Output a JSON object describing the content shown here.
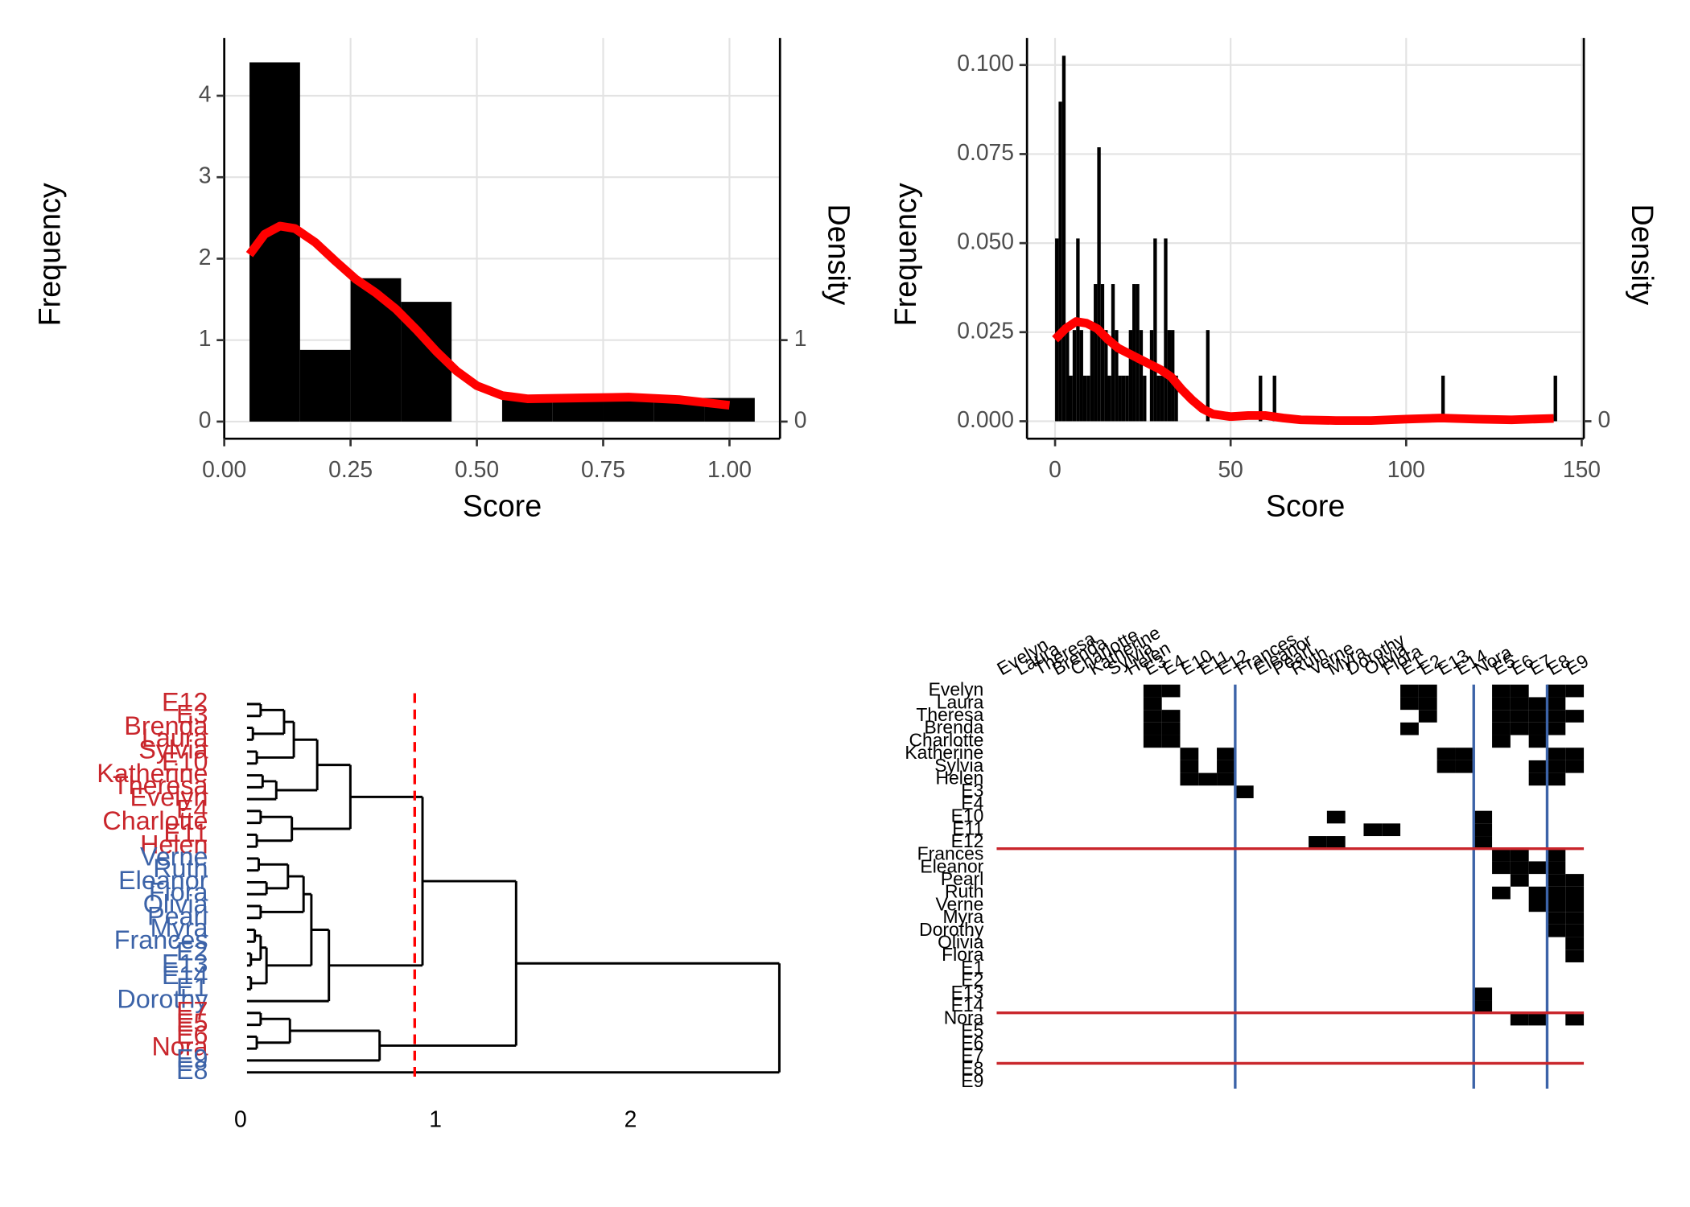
{
  "chart_data": [
    {
      "type": "histogram",
      "xlabel": "Score",
      "ylabel": "Frequency",
      "y2label": "Density",
      "grid": true,
      "color": "#000000",
      "bins": [
        0.05,
        0.15,
        0.25,
        0.35,
        0.45,
        0.55,
        0.65,
        0.75,
        0.85,
        0.95,
        1.05
      ],
      "values": [
        4.41,
        0.88,
        1.76,
        1.47,
        0,
        0.29,
        0.29,
        0.29,
        0.29,
        0.29
      ],
      "xlim": [
        0,
        1.1
      ],
      "xticks": [
        {
          "value": 0,
          "label": "0.00"
        },
        {
          "value": 0.25,
          "label": "0.25"
        },
        {
          "value": 0.5,
          "label": "0.50"
        },
        {
          "value": 0.75,
          "label": "0.75"
        },
        {
          "value": 1,
          "label": "1.00"
        }
      ],
      "ylim": [
        -0.21,
        4.71
      ],
      "yticks": [
        0,
        1,
        2,
        3,
        4
      ],
      "y2lim": [
        -0.21,
        4.71
      ],
      "y2ticks": [
        0,
        1
      ],
      "density": {
        "axis": "y2",
        "color": "#ff0000",
        "x": [
          0.05,
          0.08,
          0.11,
          0.14,
          0.18,
          0.22,
          0.26,
          0.3,
          0.34,
          0.38,
          0.42,
          0.46,
          0.5,
          0.55,
          0.6,
          0.7,
          0.8,
          0.9,
          1.0
        ],
        "y": [
          2.05,
          2.3,
          2.4,
          2.37,
          2.2,
          1.97,
          1.75,
          1.58,
          1.38,
          1.13,
          0.86,
          0.62,
          0.44,
          0.32,
          0.28,
          0.29,
          0.3,
          0.27,
          0.2
        ]
      }
    },
    {
      "type": "histogram",
      "xlabel": "Score",
      "ylabel": "Frequency",
      "y2label": "Density",
      "grid": true,
      "color": "#000000",
      "bins": [
        0,
        1,
        2,
        3,
        4,
        5,
        6,
        7,
        8,
        9,
        10,
        11,
        12,
        13,
        14,
        15,
        16,
        17,
        18,
        19,
        20,
        21,
        22,
        23,
        24,
        25,
        26,
        27,
        28,
        29,
        30,
        31,
        32,
        33,
        34,
        35,
        36,
        37,
        38,
        39,
        40,
        41,
        42,
        43,
        44,
        45,
        46,
        47,
        48,
        49,
        50,
        51,
        52,
        53,
        54,
        55,
        56,
        57,
        58,
        59,
        60,
        61,
        62,
        63,
        64,
        65,
        66,
        67,
        68,
        69,
        70,
        71,
        72,
        73,
        74,
        75,
        76,
        77,
        78,
        79,
        80,
        81,
        82,
        83,
        84,
        85,
        86,
        87,
        88,
        89,
        90,
        91,
        92,
        93,
        94,
        95,
        96,
        97,
        98,
        99,
        100,
        101,
        102,
        103,
        104,
        105,
        106,
        107,
        108,
        109,
        110,
        111,
        112,
        113,
        114,
        115,
        116,
        117,
        118,
        119,
        120,
        121,
        122,
        123,
        124,
        125,
        126,
        127,
        128,
        129,
        130,
        131,
        132,
        133,
        134,
        135,
        136,
        137,
        138,
        139,
        140,
        141,
        142,
        143,
        144
      ],
      "values": [
        0.0513,
        0.0897,
        0.1026,
        0.0256,
        0.0128,
        0.0256,
        0.0513,
        0.0256,
        0.0128,
        0.0128,
        0.0256,
        0.0385,
        0.0769,
        0.0385,
        0.0256,
        0.0128,
        0.0385,
        0.0256,
        0.0128,
        0.0128,
        0.0128,
        0.0256,
        0.0385,
        0.0385,
        0.0256,
        0.0128,
        0,
        0.0256,
        0.0513,
        0.0128,
        0.0128,
        0.0513,
        0.0256,
        0.0256,
        0.0128,
        0,
        0,
        0,
        0,
        0,
        0,
        0,
        0,
        0.0256,
        0,
        0,
        0,
        0,
        0,
        0,
        0,
        0,
        0,
        0,
        0,
        0,
        0,
        0,
        0.0128,
        0,
        0,
        0,
        0.0128,
        0,
        0,
        0,
        0,
        0,
        0,
        0,
        0,
        0,
        0,
        0,
        0,
        0,
        0,
        0,
        0,
        0,
        0,
        0,
        0,
        0,
        0,
        0,
        0,
        0,
        0,
        0,
        0,
        0,
        0,
        0,
        0,
        0,
        0,
        0,
        0,
        0,
        0,
        0,
        0,
        0,
        0,
        0,
        0,
        0,
        0,
        0,
        0.0128,
        0,
        0,
        0,
        0,
        0,
        0,
        0,
        0,
        0,
        0,
        0,
        0,
        0,
        0,
        0,
        0,
        0,
        0,
        0,
        0,
        0,
        0,
        0,
        0,
        0,
        0,
        0,
        0,
        0,
        0,
        0,
        0.0128,
        0
      ],
      "xlim": [
        -8,
        150.6
      ],
      "xticks": [
        0,
        50,
        100,
        150
      ],
      "ylim": [
        -0.0049,
        0.1076
      ],
      "yticks": [
        {
          "value": 0,
          "label": "0.000"
        },
        {
          "value": 0.025,
          "label": "0.025"
        },
        {
          "value": 0.05,
          "label": "0.050"
        },
        {
          "value": 0.075,
          "label": "0.075"
        },
        {
          "value": 0.1,
          "label": "0.100"
        }
      ],
      "y2lim": [
        -0.0049,
        0.1076
      ],
      "y2ticks": [
        0
      ],
      "density": {
        "axis": "y2",
        "color": "#ff0000",
        "x": [
          0,
          3,
          6,
          9,
          12,
          15,
          18,
          21,
          24,
          27,
          30,
          33,
          36,
          39,
          42,
          45,
          50,
          55,
          60,
          65,
          70,
          80,
          90,
          100,
          110,
          120,
          130,
          142
        ],
        "y": [
          0.023,
          0.026,
          0.028,
          0.0275,
          0.026,
          0.023,
          0.0205,
          0.019,
          0.0175,
          0.016,
          0.0145,
          0.0125,
          0.009,
          0.006,
          0.0035,
          0.002,
          0.0013,
          0.0016,
          0.0016,
          0.0009,
          0.0004,
          0.0002,
          0.0002,
          0.0006,
          0.0009,
          0.0006,
          0.0004,
          0.0008
        ]
      }
    },
    {
      "type": "dendrogram",
      "labels": [
        "E12",
        "E3",
        "Brenda",
        "Laura",
        "Sylvia",
        "E10",
        "Katherine",
        "Theresa",
        "Evelyn",
        "E4",
        "Charlotte",
        "E11",
        "Helen",
        "Verne",
        "Ruth",
        "Eleanor",
        "Flora",
        "Olivia",
        "Pearl",
        "Myra",
        "Frances",
        "E2",
        "E13",
        "E14",
        "E1",
        "Dorothy",
        "E7",
        "E5",
        "E6",
        "Nora",
        "E9",
        "E8"
      ],
      "leaf_groups": [
        0,
        0,
        0,
        0,
        0,
        0,
        0,
        0,
        0,
        0,
        0,
        0,
        0,
        1,
        1,
        1,
        1,
        1,
        1,
        1,
        1,
        1,
        1,
        1,
        1,
        1,
        2,
        2,
        2,
        2,
        3,
        3
      ],
      "group_colors": [
        "#c9262c",
        "#3c63a8",
        "#c9262c",
        "#3c63a8"
      ],
      "merges": [
        [
          -1,
          -2,
          0.07
        ],
        [
          -3,
          -4,
          0.03
        ],
        [
          1,
          2,
          0.19
        ],
        [
          -5,
          -6,
          0.05
        ],
        [
          3,
          4,
          0.24
        ],
        [
          -7,
          -8,
          0.08
        ],
        [
          6,
          -9,
          0.15
        ],
        [
          5,
          7,
          0.36
        ],
        [
          -10,
          -11,
          0.07
        ],
        [
          -12,
          -13,
          0.05
        ],
        [
          9,
          10,
          0.23
        ],
        [
          8,
          11,
          0.53
        ],
        [
          -14,
          -15,
          0.06
        ],
        [
          -16,
          -17,
          0.1
        ],
        [
          13,
          14,
          0.21
        ],
        [
          -18,
          -19,
          0.07
        ],
        [
          15,
          16,
          0.29
        ],
        [
          -20,
          -21,
          0.04
        ],
        [
          -22,
          -23,
          0.02
        ],
        [
          18,
          19,
          0.07
        ],
        [
          -24,
          -25,
          0.02
        ],
        [
          20,
          21,
          0.1
        ],
        [
          17,
          22,
          0.33
        ],
        [
          23,
          -26,
          0.42
        ],
        [
          12,
          24,
          0.9
        ],
        [
          -27,
          -28,
          0.07
        ],
        [
          -29,
          -30,
          0.05
        ],
        [
          26,
          27,
          0.22
        ],
        [
          28,
          -31,
          0.68
        ],
        [
          25,
          29,
          1.38
        ],
        [
          30,
          -32,
          2.73
        ]
      ],
      "cut": 0.86,
      "cut_color": "#ff0000",
      "xlim": [
        0,
        2.75
      ],
      "xticks": [
        0,
        1,
        2
      ]
    },
    {
      "type": "matrix",
      "labels": [
        "Evelyn",
        "Laura",
        "Theresa",
        "Brenda",
        "Charlotte",
        "Katherine",
        "Sylvia",
        "Helen",
        "E3",
        "E4",
        "E10",
        "E11",
        "E12",
        "Frances",
        "Eleanor",
        "Pearl",
        "Ruth",
        "Verne",
        "Myra",
        "Dorothy",
        "Olivia",
        "Flora",
        "E1",
        "E2",
        "E13",
        "E14",
        "Nora",
        "E5",
        "E6",
        "E7",
        "E8",
        "E9"
      ],
      "color": "#000000",
      "cells": [
        [
          0,
          8
        ],
        [
          0,
          9
        ],
        [
          0,
          22
        ],
        [
          0,
          23
        ],
        [
          0,
          27
        ],
        [
          0,
          28
        ],
        [
          0,
          30
        ],
        [
          0,
          31
        ],
        [
          1,
          8
        ],
        [
          1,
          22
        ],
        [
          1,
          23
        ],
        [
          1,
          27
        ],
        [
          1,
          28
        ],
        [
          1,
          29
        ],
        [
          1,
          30
        ],
        [
          2,
          8
        ],
        [
          2,
          9
        ],
        [
          2,
          23
        ],
        [
          2,
          27
        ],
        [
          2,
          28
        ],
        [
          2,
          29
        ],
        [
          2,
          30
        ],
        [
          2,
          31
        ],
        [
          3,
          8
        ],
        [
          3,
          9
        ],
        [
          3,
          22
        ],
        [
          3,
          27
        ],
        [
          3,
          28
        ],
        [
          3,
          29
        ],
        [
          3,
          30
        ],
        [
          4,
          8
        ],
        [
          4,
          9
        ],
        [
          4,
          27
        ],
        [
          4,
          29
        ],
        [
          5,
          10
        ],
        [
          5,
          12
        ],
        [
          5,
          24
        ],
        [
          5,
          25
        ],
        [
          5,
          30
        ],
        [
          5,
          31
        ],
        [
          6,
          10
        ],
        [
          6,
          12
        ],
        [
          6,
          24
        ],
        [
          6,
          25
        ],
        [
          6,
          29
        ],
        [
          6,
          30
        ],
        [
          6,
          31
        ],
        [
          7,
          10
        ],
        [
          7,
          11
        ],
        [
          7,
          12
        ],
        [
          7,
          29
        ],
        [
          7,
          30
        ],
        [
          8,
          13
        ],
        [
          13,
          27
        ],
        [
          13,
          28
        ],
        [
          13,
          30
        ],
        [
          14,
          27
        ],
        [
          14,
          28
        ],
        [
          14,
          29
        ],
        [
          14,
          30
        ],
        [
          15,
          28
        ],
        [
          15,
          30
        ],
        [
          15,
          31
        ],
        [
          16,
          27
        ],
        [
          16,
          29
        ],
        [
          16,
          30
        ],
        [
          16,
          31
        ],
        [
          12,
          17
        ],
        [
          17,
          29
        ],
        [
          17,
          30
        ],
        [
          17,
          31
        ],
        [
          10,
          18
        ],
        [
          12,
          18
        ],
        [
          18,
          30
        ],
        [
          18,
          31
        ],
        [
          19,
          30
        ],
        [
          19,
          31
        ],
        [
          11,
          20
        ],
        [
          20,
          31
        ],
        [
          11,
          21
        ],
        [
          21,
          31
        ],
        [
          10,
          26
        ],
        [
          11,
          26
        ],
        [
          12,
          26
        ],
        [
          24,
          26
        ],
        [
          25,
          26
        ],
        [
          26,
          28
        ],
        [
          26,
          29
        ],
        [
          26,
          31
        ]
      ],
      "col_breaks": [
        13,
        26,
        30
      ],
      "col_break_color": "#3c63a8",
      "row_breaks": [
        13,
        26,
        30
      ],
      "row_break_color": "#c9262c"
    }
  ]
}
